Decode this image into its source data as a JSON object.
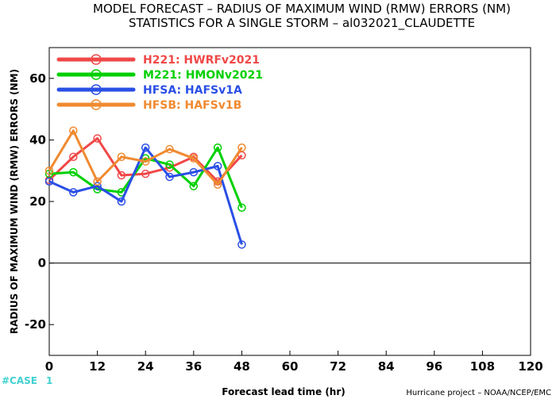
{
  "title_line1": "MODEL FORECAST – RADIUS OF MAXIMUM WIND (RMW) ERRORS (NM)",
  "title_line2": "STATISTICS FOR A SINGLE STORM – al032021_CLAUDETTE",
  "case_label": "#CASE",
  "case_count": "1",
  "credit": "Hurricane project – NOAA/NCEP/EMC",
  "colors": {
    "case": "#40d0d0",
    "zero_line": "#000000"
  },
  "chart_data": {
    "type": "line",
    "xlabel": "Forecast lead time (hr)",
    "ylabel": "RADIUS OF MAXIMUM WIND (RMW) ERRORS (NM)",
    "xlim": [
      0,
      120
    ],
    "ylim": [
      -30,
      70
    ],
    "xticks": [
      0,
      12,
      24,
      36,
      48,
      60,
      72,
      84,
      96,
      108,
      120
    ],
    "yticks": [
      -20,
      0,
      20,
      40,
      60
    ],
    "ytick_labels": [
      "-20",
      "0",
      "20",
      "40",
      "60"
    ],
    "grid": false,
    "legend_position": "top-left",
    "x": [
      0,
      6,
      12,
      18,
      24,
      30,
      36,
      42,
      48
    ],
    "series": [
      {
        "name": "H221: HWRFv2021",
        "color": "#f04848",
        "values": [
          27,
          34.5,
          40.5,
          28.5,
          29,
          31,
          34.5,
          26.5,
          35
        ]
      },
      {
        "name": "M221: HMONv2021",
        "color": "#00d000",
        "values": [
          29,
          29.5,
          24,
          23,
          34,
          32,
          25,
          37.5,
          18
        ]
      },
      {
        "name": "HFSA: HAFSv1A",
        "color": "#2a4fe6",
        "values": [
          26.5,
          23,
          25,
          20,
          37.5,
          28,
          29.5,
          31.5,
          6
        ]
      },
      {
        "name": "HFSB: HAFSv1B",
        "color": "#f08a30",
        "values": [
          30,
          43,
          26.5,
          34.5,
          33,
          37,
          34,
          25.5,
          37.5
        ]
      }
    ]
  }
}
